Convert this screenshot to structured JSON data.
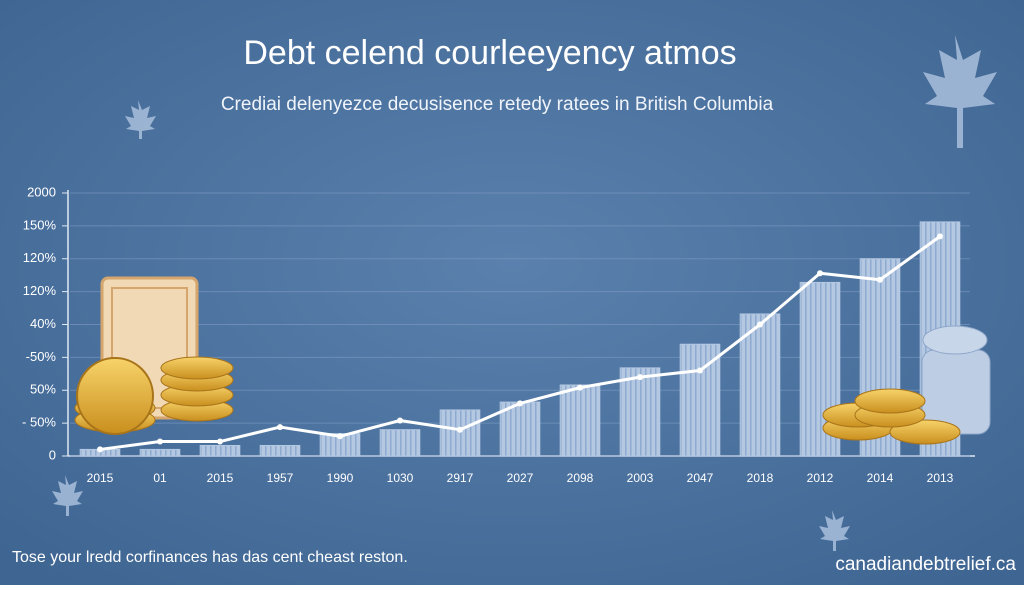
{
  "chart_data": {
    "type": "bar",
    "title": "Debt celend courleeyency atmos",
    "subtitle": "Crediai delenyezce decusisence retedy ratees in British Columbia",
    "categories": [
      "2015",
      "01",
      "2015",
      "1957",
      "1990",
      "1030",
      "2917",
      "2027",
      "2098",
      "2003",
      "2047",
      "2018",
      "2012",
      "2014",
      "2013"
    ],
    "series": [
      {
        "type": "bar",
        "color": "#b4c8e2",
        "values": [
          5,
          5,
          8,
          8,
          17,
          20,
          35,
          41,
          54,
          67,
          85,
          108,
          132,
          150,
          178
        ]
      },
      {
        "type": "line",
        "color": "#ffffff",
        "values": [
          5,
          11,
          11,
          22,
          15,
          27,
          20,
          40,
          52,
          60,
          65,
          100,
          139,
          134,
          167
        ]
      }
    ],
    "ylim": [
      0,
      200
    ],
    "yticks": [
      0,
      {
        "value": 25,
        "label": "- 50%"
      },
      {
        "value": 50,
        "label": "50%"
      },
      {
        "value": 75,
        "label": "-50%"
      },
      {
        "value": 100,
        "label": "40%"
      },
      {
        "value": 125,
        "label": "120%"
      },
      {
        "value": 150,
        "label": "120%"
      },
      {
        "value": 175,
        "label": "150%"
      },
      {
        "value": 200,
        "label": "2000"
      }
    ],
    "grid": true,
    "footnote": "Tose your lredd corfinances has das cent cheast reston.",
    "source": "canadiandebtrelief.ca"
  }
}
